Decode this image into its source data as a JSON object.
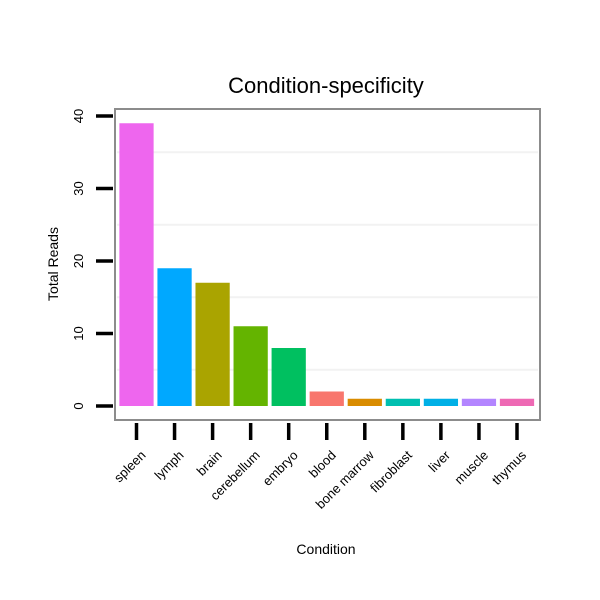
{
  "chart_data": {
    "type": "bar",
    "title": "Condition-specificity",
    "xlabel": "Condition",
    "ylabel": "Total Reads",
    "ylim": [
      0,
      40
    ],
    "yticks": [
      0,
      10,
      20,
      30,
      40
    ],
    "categories": [
      "spleen",
      "lymph",
      "brain",
      "cerebellum",
      "embryo",
      "blood",
      "bone marrow",
      "fibroblast",
      "liver",
      "muscle",
      "thymus"
    ],
    "values": [
      39,
      19,
      17,
      11,
      8,
      2,
      1,
      1,
      1,
      1,
      1
    ],
    "colors": [
      "#ee66ee",
      "#00a8ff",
      "#aaa400",
      "#64b400",
      "#00c060",
      "#f8766d",
      "#d98c00",
      "#00bfb0",
      "#00b0e6",
      "#b385ff",
      "#ee69b4"
    ],
    "grid": true,
    "legend": "none"
  }
}
